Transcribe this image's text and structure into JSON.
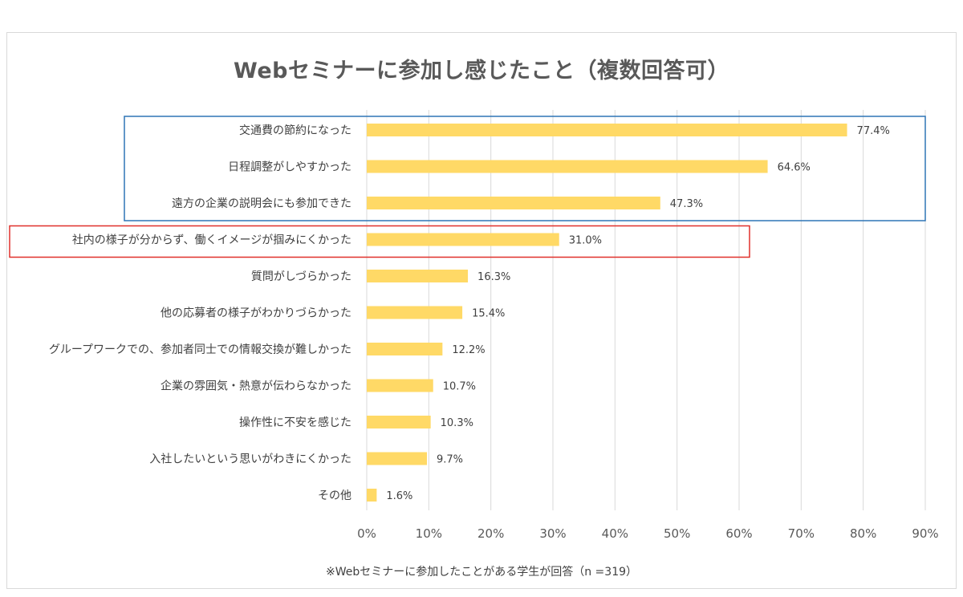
{
  "chart_data": {
    "type": "bar",
    "orientation": "horizontal",
    "title": "Webセミナーに参加し感じたこと（複数回答可）",
    "categories": [
      "交通費の節約になった",
      "日程調整がしやすかった",
      "遠方の企業の説明会にも参加できた",
      "社内の様子が分からず、働くイメージが掴みにくかった",
      "質問がしづらかった",
      "他の応募者の様子がわかりづらかった",
      "グループワークでの、参加者同士での情報交換が難しかった",
      "企業の雰囲気・熱意が伝わらなかった",
      "操作性に不安を感じた",
      "入社したいという思いがわきにくかった",
      "その他"
    ],
    "values": [
      77.4,
      64.6,
      47.3,
      31.0,
      16.3,
      15.4,
      12.2,
      10.7,
      10.3,
      9.7,
      1.6
    ],
    "value_labels": [
      "77.4%",
      "64.6%",
      "47.3%",
      "31.0%",
      "16.3%",
      "15.4%",
      "12.2%",
      "10.7%",
      "10.3%",
      "9.7%",
      "1.6%"
    ],
    "xlim": [
      0,
      90
    ],
    "x_ticks": [
      "0%",
      "10%",
      "20%",
      "30%",
      "40%",
      "50%",
      "60%",
      "70%",
      "80%",
      "90%"
    ],
    "grid": true,
    "bar_color": "#ffd966",
    "highlight_boxes": [
      {
        "categories": [
          0,
          1,
          2
        ],
        "color": "#2e75b6"
      },
      {
        "categories": [
          3
        ],
        "color": "#e0302b"
      }
    ],
    "footnote": "※Webセミナーに参加したことがある学生が回答（n =319）"
  }
}
